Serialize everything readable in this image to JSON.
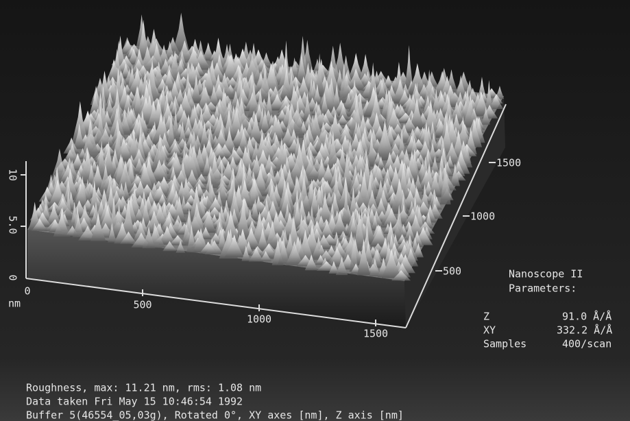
{
  "z_axis": {
    "ticks": [
      "10",
      "5.0",
      "0"
    ],
    "unit": "nm"
  },
  "x_axis": {
    "ticks": [
      "0",
      "500",
      "1000",
      "1500"
    ]
  },
  "y_axis": {
    "ticks": [
      "500",
      "1000",
      "1500"
    ]
  },
  "parameters": {
    "title": "Nanoscope II",
    "subtitle": "Parameters:",
    "rows": [
      [
        "Z",
        "91.0 Å/Å"
      ],
      [
        "XY",
        "332.2 Å/Å"
      ],
      [
        "Samples",
        "400/scan"
      ]
    ]
  },
  "footer": [
    "Roughness, max: 11.21 nm, rms: 1.08 nm",
    "Data taken Fri May 15 10:46:54 1992",
    "Buffer 5(46554_05,03g), Rotated 0°, XY axes [nm], Z axis [nm]"
  ]
}
